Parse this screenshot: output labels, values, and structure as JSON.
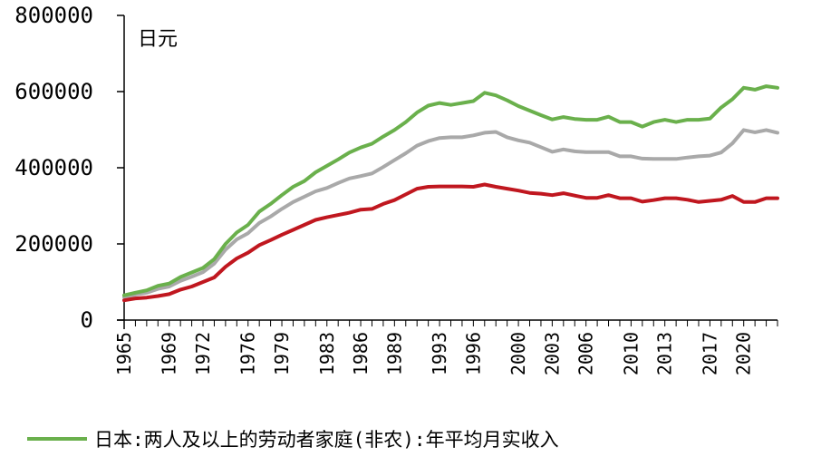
{
  "chart_data": {
    "type": "line",
    "title": "",
    "xlabel": "",
    "ylabel": "日元",
    "ylim": [
      0,
      800000
    ],
    "xlim": [
      1965,
      2023
    ],
    "y_ticks": [
      "0",
      "200000",
      "400000",
      "600000",
      "800000"
    ],
    "x_ticks": [
      "1965",
      "1969",
      "1972",
      "1976",
      "1979",
      "1983",
      "1986",
      "1989",
      "1993",
      "1996",
      "2000",
      "2003",
      "2006",
      "2010",
      "2013",
      "2017",
      "2020"
    ],
    "grid": false,
    "legend_position": "bottom-left",
    "x": [
      1965,
      1966,
      1967,
      1968,
      1969,
      1970,
      1971,
      1972,
      1973,
      1974,
      1975,
      1976,
      1977,
      1978,
      1979,
      1980,
      1981,
      1982,
      1983,
      1984,
      1985,
      1986,
      1987,
      1988,
      1989,
      1990,
      1991,
      1992,
      1993,
      1994,
      1995,
      1996,
      1997,
      1998,
      1999,
      2000,
      2001,
      2002,
      2003,
      2004,
      2005,
      2006,
      2007,
      2008,
      2009,
      2010,
      2011,
      2012,
      2013,
      2014,
      2015,
      2016,
      2017,
      2018,
      2019,
      2020,
      2021,
      2022,
      2023
    ],
    "series": [
      {
        "name": "日本:两人及以上的劳动者家庭(非农):年平均月实收入",
        "color": "#6ab04c",
        "values": [
          65000,
          72000,
          78000,
          90000,
          96000,
          113000,
          125000,
          137000,
          160000,
          200000,
          230000,
          250000,
          285000,
          305000,
          328000,
          350000,
          365000,
          388000,
          405000,
          422000,
          440000,
          453000,
          463000,
          482000,
          499000,
          520000,
          545000,
          563000,
          570000,
          565000,
          570000,
          575000,
          597000,
          590000,
          577000,
          562000,
          550000,
          538000,
          527000,
          533000,
          528000,
          526000,
          526000,
          534000,
          520000,
          520000,
          508000,
          520000,
          526000,
          520000,
          526000,
          526000,
          529000,
          558000,
          580000,
          610000,
          605000,
          614000,
          610000
        ]
      },
      {
        "name": "",
        "color": "#a9a9a9",
        "values": [
          60000,
          67000,
          72000,
          82000,
          88000,
          103000,
          114000,
          126000,
          148000,
          185000,
          212000,
          228000,
          255000,
          272000,
          292000,
          310000,
          324000,
          338000,
          347000,
          360000,
          372000,
          378000,
          385000,
          402000,
          420000,
          438000,
          458000,
          470000,
          478000,
          480000,
          480000,
          485000,
          492000,
          494000,
          480000,
          472000,
          466000,
          454000,
          442000,
          448000,
          443000,
          441000,
          441000,
          441000,
          430000,
          430000,
          424000,
          423000,
          423000,
          423000,
          427000,
          430000,
          432000,
          440000,
          464000,
          499000,
          493000,
          499000,
          492000
        ]
      },
      {
        "name": "",
        "color": "#c0171f",
        "values": [
          52000,
          57000,
          59000,
          63000,
          68000,
          80000,
          88000,
          100000,
          112000,
          140000,
          162000,
          177000,
          197000,
          210000,
          224000,
          237000,
          250000,
          263000,
          270000,
          276000,
          282000,
          290000,
          292000,
          305000,
          315000,
          330000,
          345000,
          350000,
          351000,
          351000,
          351000,
          350000,
          356000,
          350000,
          345000,
          340000,
          334000,
          332000,
          328000,
          333000,
          327000,
          321000,
          321000,
          328000,
          320000,
          320000,
          311000,
          315000,
          320000,
          320000,
          316000,
          310000,
          313000,
          316000,
          326000,
          310000,
          310000,
          320000,
          320000
        ]
      }
    ]
  }
}
